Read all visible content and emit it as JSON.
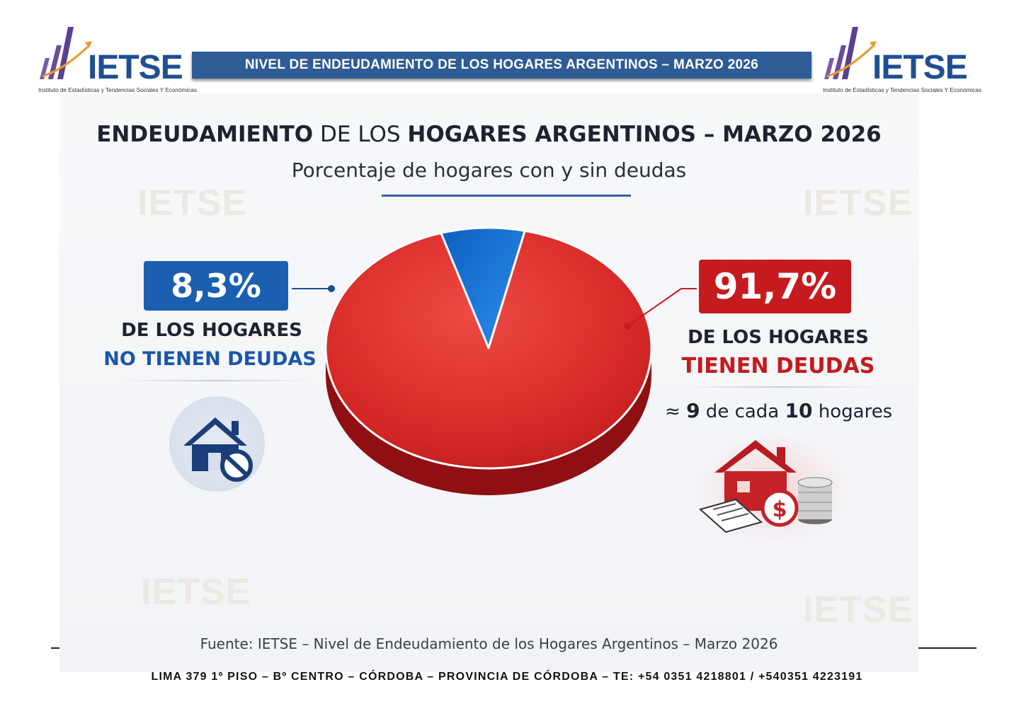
{
  "org": {
    "name": "IETSE",
    "full_name": "Instituto de Estadísticas y Tendencias Sociales Y Económicas"
  },
  "header": {
    "banner": "NIVEL DE ENDEUDAMIENTO DE LOS HOGARES ARGENTINOS – MARZO 2026"
  },
  "infographic": {
    "title_part1": "ENDEUDAMIENTO",
    "title_part2": " DE LOS ",
    "title_part3": "HOGARES ARGENTINOS – MARZO 2026",
    "subtitle": "Porcentaje de hogares con y sin deudas",
    "left": {
      "value": "8,3%",
      "line1": "DE LOS HOGARES",
      "line2": "NO TIENEN DEUDAS"
    },
    "right": {
      "value": "91,7%",
      "line1": "DE LOS HOGARES",
      "line2": "TIENEN DEUDAS",
      "approx_prefix": "≈ ",
      "approx_n1": "9",
      "approx_mid": " de cada ",
      "approx_n2": "10",
      "approx_suffix": " hogares"
    },
    "watermark": "IETSE",
    "source": "Fuente: IETSE – Nivel de Endeudamiento de los Hogares Argentinos – Marzo 2026"
  },
  "chart_data": {
    "type": "pie",
    "title": "ENDEUDAMIENTO DE LOS HOGARES ARGENTINOS – MARZO 2026",
    "subtitle": "Porcentaje de hogares con y sin deudas",
    "slices": [
      {
        "label": "NO TIENEN DEUDAS",
        "value": 8.3,
        "color": "#1877d6"
      },
      {
        "label": "TIENEN DEUDAS",
        "value": 91.7,
        "color": "#d92b2b"
      }
    ]
  },
  "footer": {
    "address": "LIMA 379 1º PISO – Bº CENTRO – CÓRDOBA – PROVINCIA DE CÓRDOBA – TE: +54 0351 4218801 / +540351 4223191"
  },
  "colors": {
    "brand_blue": "#1f4f93",
    "debt_red": "#c51a1e",
    "nodebt_blue": "#1a5fb0"
  }
}
